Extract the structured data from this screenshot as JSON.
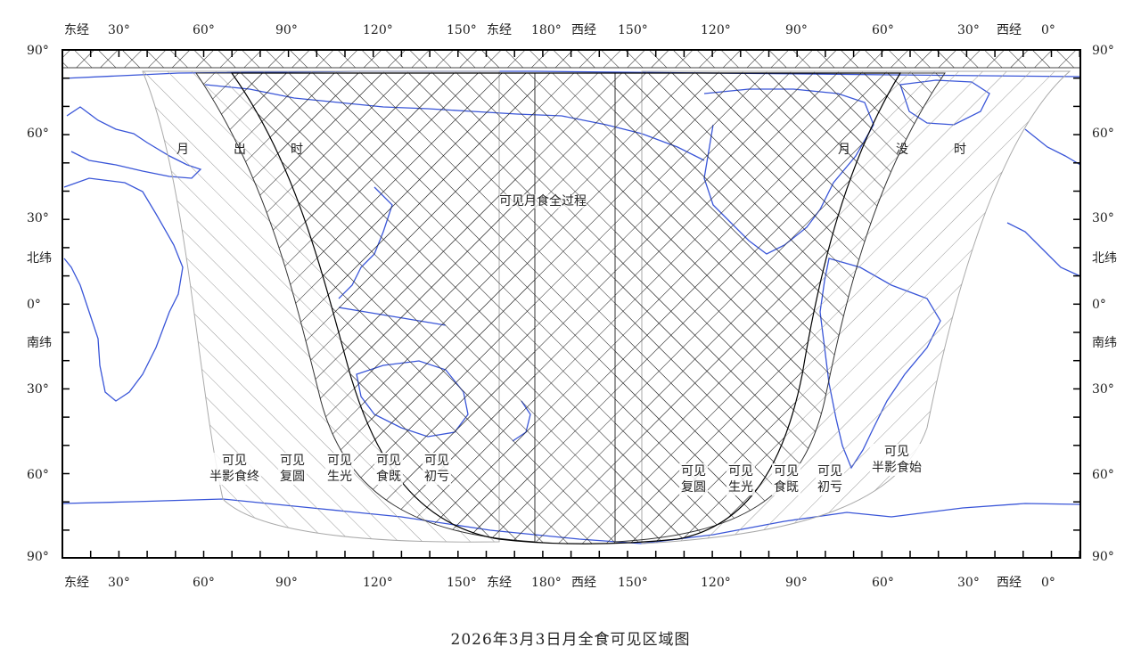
{
  "map": {
    "title": "2026年3月3日月全食可见区域图",
    "top_lon_labels": [
      "东经",
      "30°",
      "60°",
      "90°",
      "120°",
      "150°",
      "东经",
      "180°",
      "西经",
      "150°",
      "120°",
      "90°",
      "60°",
      "30°",
      "西经",
      "0°"
    ],
    "bottom_lon_labels": [
      "东经",
      "30°",
      "60°",
      "90°",
      "120°",
      "150°",
      "东经",
      "180°",
      "西经",
      "150°",
      "120°",
      "90°",
      "60°",
      "30°",
      "西经",
      "0°"
    ],
    "left_lat_labels": [
      "90°",
      "60°",
      "30°",
      "北纬",
      "0°",
      "南纬",
      "30°",
      "60°",
      "90°"
    ],
    "right_lat_labels": [
      "90°",
      "60°",
      "30°",
      "北纬",
      "0°",
      "南纬",
      "30°",
      "60°",
      "90°"
    ],
    "center_label": "可见月食全过程",
    "moonrise_chars": [
      "月",
      "出",
      "时"
    ],
    "moonset_chars": [
      "月",
      "没",
      "时"
    ],
    "west_zones": [
      {
        "line1": "可见",
        "line2": "半影食终"
      },
      {
        "line1": "可见",
        "line2": "复圆"
      },
      {
        "line1": "可见",
        "line2": "生光"
      },
      {
        "line1": "可见",
        "line2": "食既"
      },
      {
        "line1": "可见",
        "line2": "初亏"
      }
    ],
    "east_zones": [
      {
        "line1": "可见",
        "line2": "复圆"
      },
      {
        "line1": "可见",
        "line2": "生光"
      },
      {
        "line1": "可见",
        "line2": "食既"
      },
      {
        "line1": "可见",
        "line2": "初亏"
      },
      {
        "line1": "可见",
        "line2": "半影食始"
      }
    ],
    "colors": {
      "coast": "#3a56d8",
      "hatch": "#111111",
      "frame": "#000000"
    }
  }
}
